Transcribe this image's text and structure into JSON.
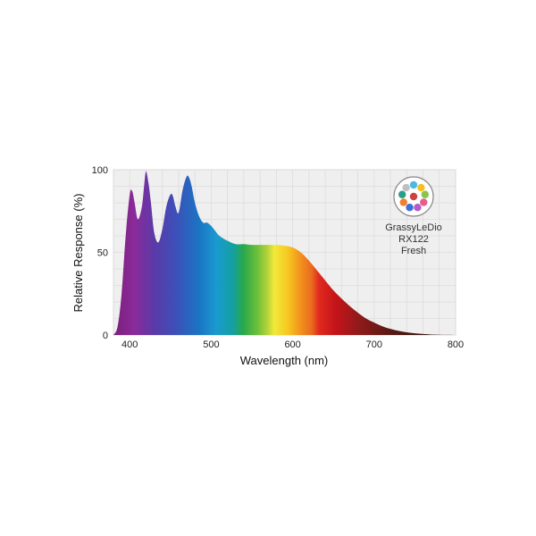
{
  "chart_data": {
    "type": "area",
    "title": "",
    "xlabel": "Wavelength (nm)",
    "ylabel": "Relative Response (%)",
    "xlim": [
      380,
      800
    ],
    "ylim": [
      0,
      100
    ],
    "x_ticks": [
      400,
      500,
      600,
      700,
      800
    ],
    "y_ticks": [
      0,
      50,
      100
    ],
    "grid": true,
    "legend_position": "top-right",
    "series": [
      {
        "name": "",
        "x": [
          380,
          385,
          390,
          395,
          400,
          403,
          406,
          410,
          415,
          418,
          420,
          423,
          426,
          430,
          435,
          440,
          445,
          450,
          453,
          456,
          460,
          465,
          470,
          473,
          476,
          480,
          485,
          490,
          495,
          500,
          505,
          510,
          520,
          530,
          540,
          550,
          560,
          570,
          580,
          590,
          600,
          610,
          620,
          630,
          640,
          650,
          660,
          670,
          680,
          690,
          700,
          710,
          720,
          730,
          740,
          750,
          760,
          770,
          780,
          790,
          800
        ],
        "y": [
          0,
          5,
          25,
          60,
          85,
          87,
          80,
          70,
          78,
          92,
          99,
          92,
          80,
          62,
          56,
          64,
          78,
          85,
          84,
          78,
          74,
          88,
          96,
          95,
          90,
          80,
          72,
          68,
          68,
          66,
          63,
          60,
          57,
          55,
          55,
          54.5,
          54.5,
          54.5,
          54.5,
          54,
          53,
          50,
          45,
          39,
          33,
          27,
          22,
          17.5,
          13.5,
          10,
          7.5,
          5.3,
          3.7,
          2.5,
          1.6,
          1,
          0.6,
          0.3,
          0.15,
          0.05,
          0
        ]
      }
    ],
    "legend": {
      "brand": "GrassyLeDio",
      "model": "RX122",
      "variant": "Fresh",
      "dot_colors": [
        "#4db8e8",
        "#f4c020",
        "#8bc34a",
        "#e85d8f",
        "#b45cc8",
        "#3a6fd8",
        "#f08030",
        "#2a9d8f",
        "#c0c0c0",
        "#d14040"
      ]
    }
  }
}
